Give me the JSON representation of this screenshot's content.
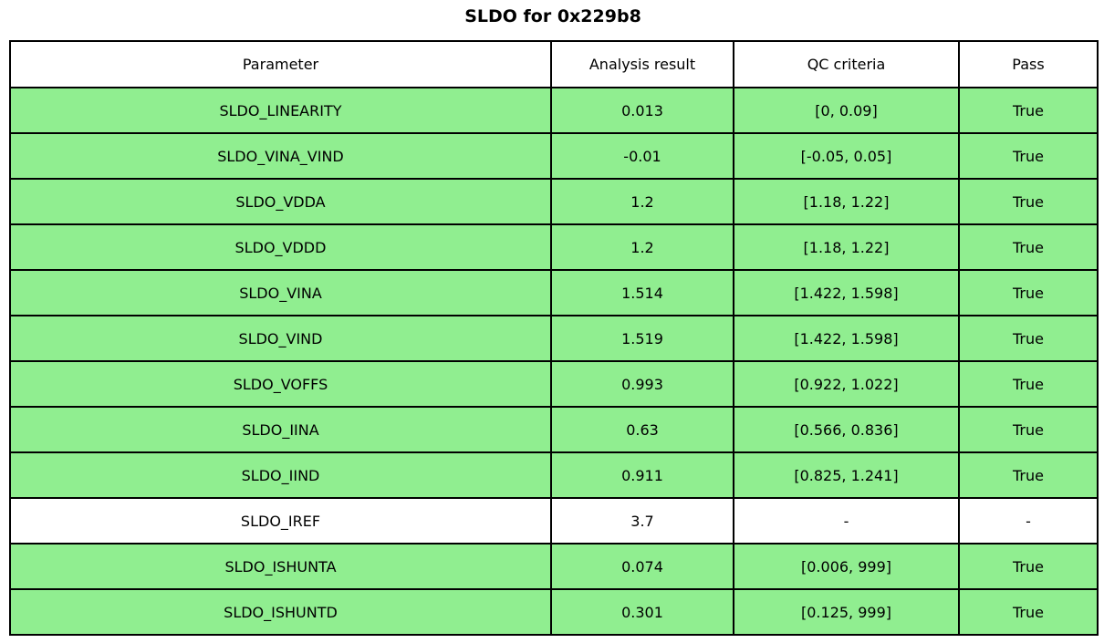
{
  "title": "SLDO for 0x229b8",
  "colors": {
    "pass_green": "#90ee90",
    "neutral_white": "#ffffff",
    "border_black": "#000000",
    "text_black": "#000000"
  },
  "chart_data": {
    "type": "table",
    "title": "SLDO for 0x229b8",
    "columns": [
      "Parameter",
      "Analysis result",
      "QC criteria",
      "Pass"
    ],
    "rows": [
      {
        "parameter": "SLDO_LINEARITY",
        "result": "0.013",
        "criteria": "[0, 0.09]",
        "pass": "True",
        "highlighted": true
      },
      {
        "parameter": "SLDO_VINA_VIND",
        "result": "-0.01",
        "criteria": "[-0.05, 0.05]",
        "pass": "True",
        "highlighted": true
      },
      {
        "parameter": "SLDO_VDDA",
        "result": "1.2",
        "criteria": "[1.18, 1.22]",
        "pass": "True",
        "highlighted": true
      },
      {
        "parameter": "SLDO_VDDD",
        "result": "1.2",
        "criteria": "[1.18, 1.22]",
        "pass": "True",
        "highlighted": true
      },
      {
        "parameter": "SLDO_VINA",
        "result": "1.514",
        "criteria": "[1.422, 1.598]",
        "pass": "True",
        "highlighted": true
      },
      {
        "parameter": "SLDO_VIND",
        "result": "1.519",
        "criteria": "[1.422, 1.598]",
        "pass": "True",
        "highlighted": true
      },
      {
        "parameter": "SLDO_VOFFS",
        "result": "0.993",
        "criteria": "[0.922, 1.022]",
        "pass": "True",
        "highlighted": true
      },
      {
        "parameter": "SLDO_IINA",
        "result": "0.63",
        "criteria": "[0.566, 0.836]",
        "pass": "True",
        "highlighted": true
      },
      {
        "parameter": "SLDO_IIND",
        "result": "0.911",
        "criteria": "[0.825, 1.241]",
        "pass": "True",
        "highlighted": true
      },
      {
        "parameter": "SLDO_IREF",
        "result": "3.7",
        "criteria": "-",
        "pass": "-",
        "highlighted": false
      },
      {
        "parameter": "SLDO_ISHUNTA",
        "result": "0.074",
        "criteria": "[0.006, 999]",
        "pass": "True",
        "highlighted": true
      },
      {
        "parameter": "SLDO_ISHUNTD",
        "result": "0.301",
        "criteria": "[0.125, 999]",
        "pass": "True",
        "highlighted": true
      }
    ],
    "layout": {
      "header_bg": "#ffffff",
      "highlight_color": "#90ee90",
      "border_color": "#000000",
      "grid": true,
      "legend": "none"
    }
  }
}
